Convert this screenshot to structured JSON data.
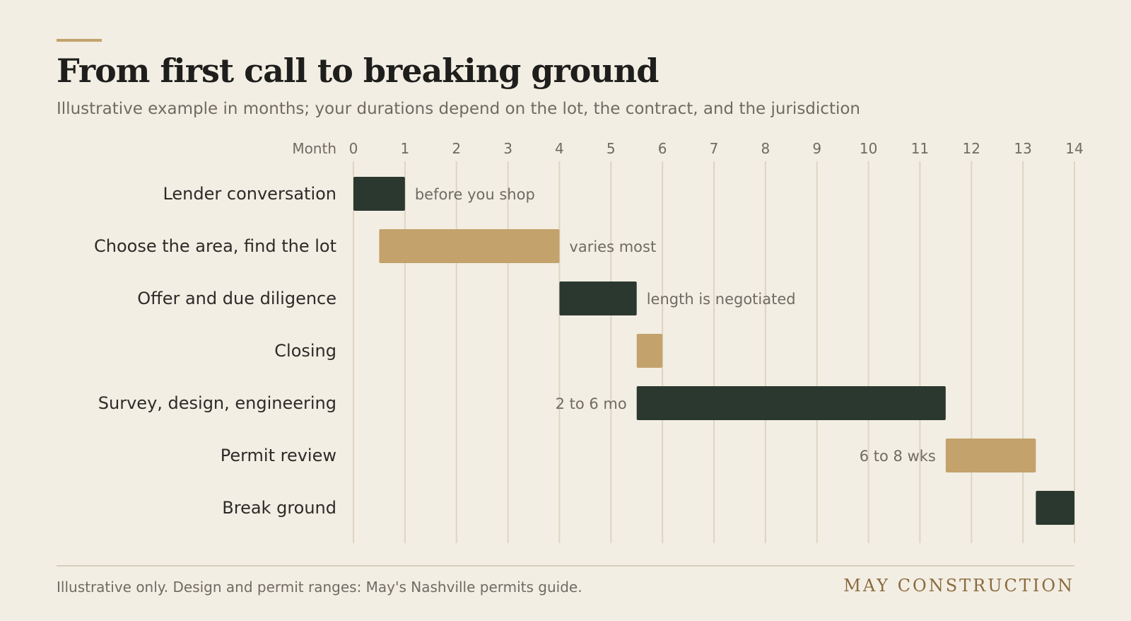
{
  "header": {
    "title": "From first call to breaking ground",
    "subtitle": "Illustrative example in months; your durations depend on the lot, the contract, and the jurisdiction"
  },
  "footer": {
    "note": "Illustrative only. Design and permit ranges: May's Nashville permits guide.",
    "brand": "MAY CONSTRUCTION"
  },
  "colors": {
    "dark": "#2b3830",
    "tan": "#c3a26c",
    "grid": "#ddd5c3",
    "label": "#2c2b28",
    "muted": "#6f6b63",
    "accent": "#c3a26c"
  },
  "chart_data": {
    "type": "bar",
    "orientation": "horizontal",
    "variant": "gantt",
    "xlabel": "Month",
    "xlim": [
      0,
      14
    ],
    "xticks": [
      0,
      1,
      2,
      3,
      4,
      5,
      6,
      7,
      8,
      9,
      10,
      11,
      12,
      13,
      14
    ],
    "grid": true,
    "tasks": [
      {
        "label": "Lender conversation",
        "start": 0,
        "end": 1,
        "color": "dark",
        "note": "before you shop",
        "note_side": "right"
      },
      {
        "label": "Choose the area, find the lot",
        "start": 0.5,
        "end": 4,
        "color": "tan",
        "note": "varies most",
        "note_side": "right"
      },
      {
        "label": "Offer and due diligence",
        "start": 4,
        "end": 5.5,
        "color": "dark",
        "note": "length is negotiated",
        "note_side": "right"
      },
      {
        "label": "Closing",
        "start": 5.5,
        "end": 6,
        "color": "tan",
        "note": "",
        "note_side": "right"
      },
      {
        "label": "Survey, design, engineering",
        "start": 5.5,
        "end": 11.5,
        "color": "dark",
        "note": "2 to 6 mo",
        "note_side": "left"
      },
      {
        "label": "Permit review",
        "start": 11.5,
        "end": 13.25,
        "color": "tan",
        "note": "6 to 8 wks",
        "note_side": "left"
      },
      {
        "label": "Break ground",
        "start": 13.25,
        "end": 14,
        "color": "dark",
        "note": "",
        "note_side": "right"
      }
    ]
  }
}
